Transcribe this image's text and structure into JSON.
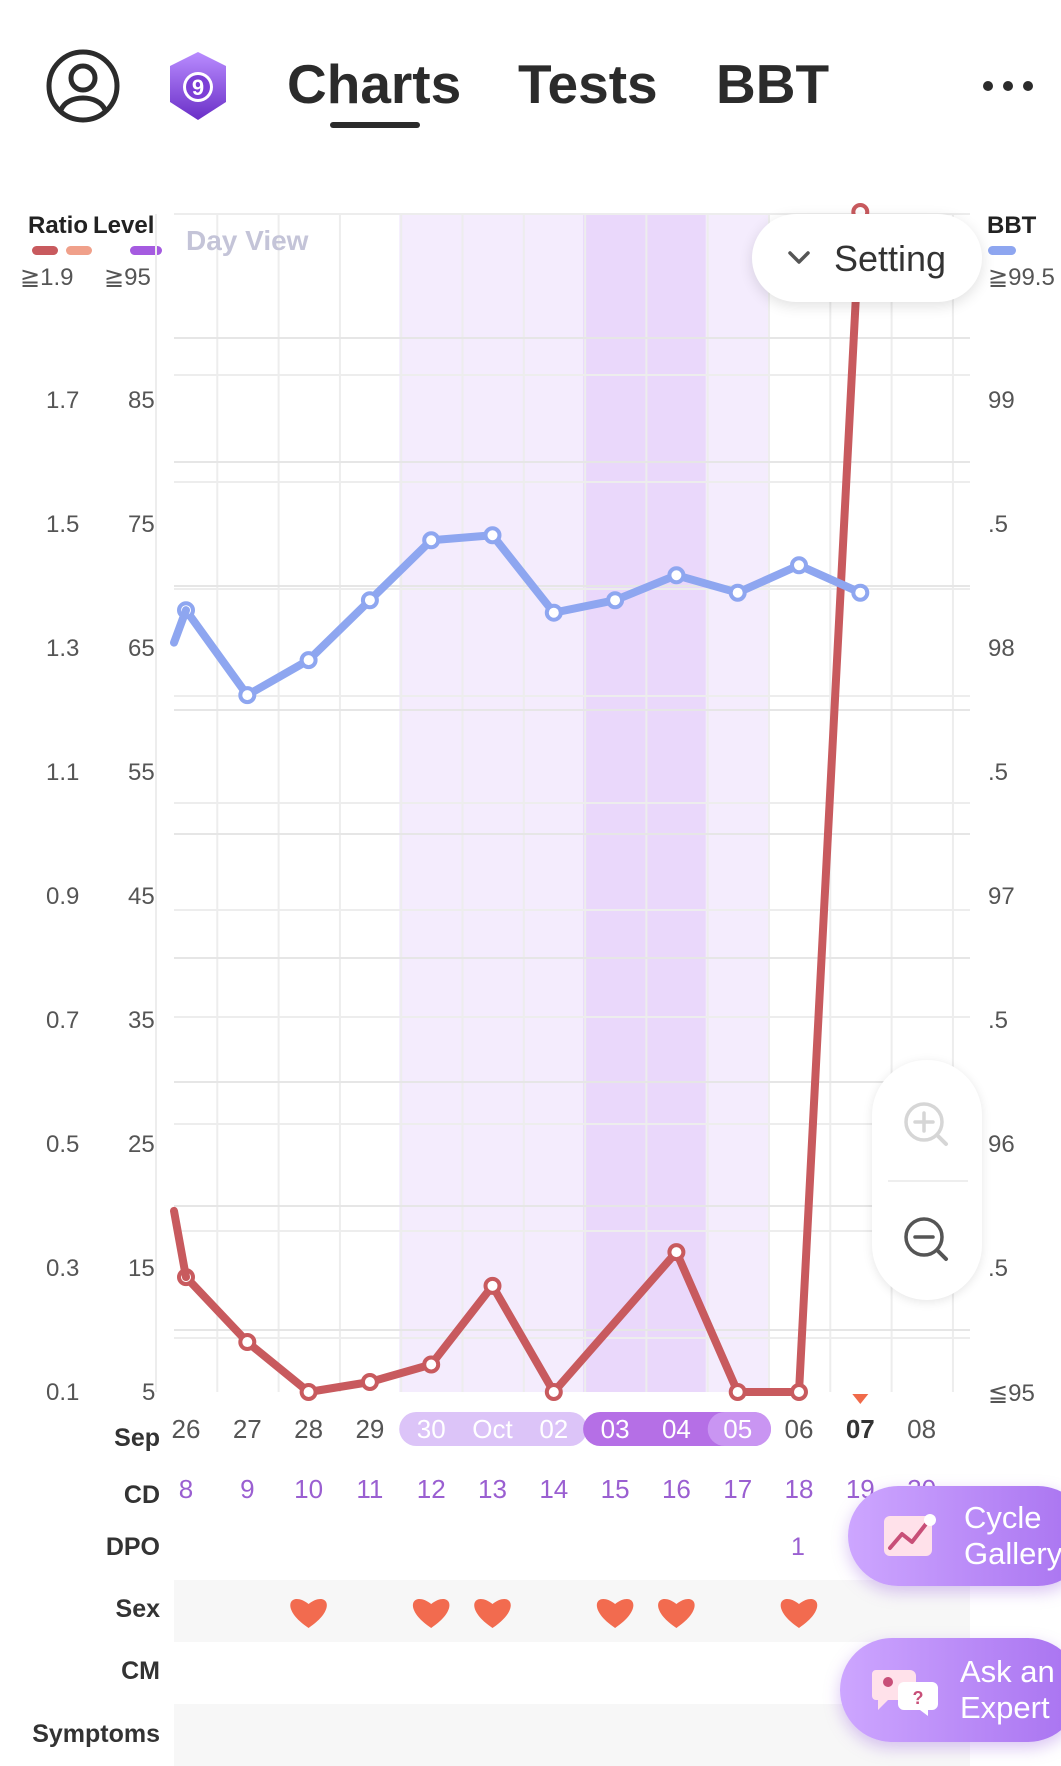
{
  "header": {
    "tabs": [
      {
        "label": "Charts",
        "active": true
      },
      {
        "label": "Tests",
        "active": false
      },
      {
        "label": "BBT",
        "active": false
      }
    ],
    "badge_number": "9",
    "icons": [
      "user-icon",
      "badge-icon",
      "more-icon"
    ]
  },
  "chart": {
    "view_label": "Day View",
    "setting_label": "Setting",
    "left_axis_titles": {
      "ratio": "Ratio",
      "level": "Level"
    },
    "right_axis_title": "BBT",
    "top_thresholds": {
      "ratio": "≧1.9",
      "level": "≧95",
      "bbt": "≧99.5"
    },
    "ratio_ticks": [
      "1.7",
      "1.5",
      "1.3",
      "1.1",
      "0.9",
      "0.7",
      "0.5",
      "0.3",
      "0.1"
    ],
    "level_ticks": [
      "85",
      "75",
      "65",
      "55",
      "45",
      "35",
      "25",
      "15",
      "5"
    ],
    "bbt_ticks": [
      "99",
      ".5",
      "98",
      ".5",
      "97",
      ".5",
      "96",
      ".5",
      "≦95"
    ],
    "colors": {
      "ratio": "#c85a5e",
      "ratio_light": "#f0a08a",
      "level": "#a55be0",
      "bbt": "#8ea6f0",
      "fertile": "#f4ecfd",
      "peak": "#ead8fb"
    }
  },
  "chart_data": {
    "type": "line",
    "x": [
      "Sep 26",
      "Sep 27",
      "Sep 28",
      "Sep 29",
      "Sep 30",
      "Oct 01",
      "Oct 02",
      "Oct 03",
      "Oct 04",
      "Oct 05",
      "Oct 06",
      "Oct 07",
      "Oct 08"
    ],
    "series": [
      {
        "name": "BBT",
        "axis": "right",
        "values": [
          98.13,
          97.79,
          97.93,
          98.17,
          98.41,
          98.43,
          98.12,
          98.17,
          98.27,
          98.2,
          98.31,
          98.2,
          null
        ]
      },
      {
        "name": "Level",
        "axis": "left",
        "values": [
          14.2,
          9.0,
          5.0,
          5.8,
          7.2,
          13.5,
          5.0,
          null,
          16.2,
          5.0,
          5.0,
          100,
          null
        ]
      }
    ],
    "level_range": [
      5,
      95
    ],
    "bbt_range": [
      95,
      99.5
    ],
    "ratio_range": [
      0.1,
      1.9
    ],
    "grid": true
  },
  "dates": {
    "month_label": "Sep",
    "days": [
      "26",
      "27",
      "28",
      "29",
      "30",
      "Oct",
      "02",
      "03",
      "04",
      "05",
      "06",
      "07",
      "08"
    ],
    "today_index": 11
  },
  "rows": {
    "labels": {
      "cd": "CD",
      "dpo": "DPO",
      "sex": "Sex",
      "cm": "CM",
      "symptoms": "Symptoms"
    },
    "cd": [
      "8",
      "9",
      "10",
      "11",
      "12",
      "13",
      "14",
      "15",
      "16",
      "17",
      "18",
      "19",
      "20"
    ],
    "dpo": {
      "index": 10,
      "value": "1"
    },
    "sex_days": [
      2,
      4,
      5,
      7,
      8,
      10
    ]
  },
  "fabs": {
    "cycle_gallery": [
      "Cycle",
      "Gallery"
    ],
    "ask_expert": [
      "Ask an",
      "Expert"
    ]
  }
}
